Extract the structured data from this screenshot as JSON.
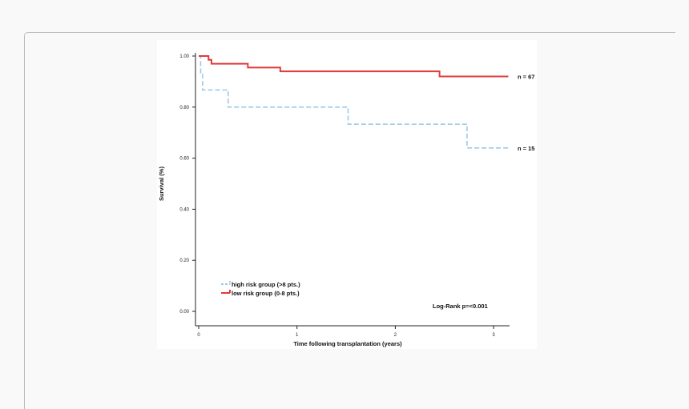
{
  "chart_data": {
    "type": "line",
    "title": "",
    "xlabel": "Time following transplantation (years)",
    "ylabel": "Survival (%)",
    "xlim": [
      0,
      3.15
    ],
    "ylim": [
      0,
      1.0
    ],
    "x_ticks": [
      "0",
      "1",
      "2",
      "3"
    ],
    "y_ticks": [
      "0.00",
      "0.20",
      "0.40",
      "0.60",
      "0.80",
      "1.00"
    ],
    "legend_position": "bottom-left",
    "annotation": "Log-Rank p=<0.001",
    "series": [
      {
        "name": "high risk group (>8 pts.)",
        "color": "#9ecae8",
        "style": "dashed",
        "end_label": "n = 15",
        "steps": [
          [
            0,
            1.0
          ],
          [
            0.02,
            0.933
          ],
          [
            0.04,
            0.867
          ],
          [
            0.3,
            0.8
          ],
          [
            1.52,
            0.733
          ],
          [
            2.73,
            0.64
          ],
          [
            3.15,
            0.64
          ]
        ]
      },
      {
        "name": "low risk group (0-8 pts.)",
        "color": "#e03c3c",
        "style": "solid",
        "end_label": "n = 67",
        "steps": [
          [
            0,
            1.0
          ],
          [
            0.1,
            0.985
          ],
          [
            0.13,
            0.97
          ],
          [
            0.5,
            0.955
          ],
          [
            0.83,
            0.94
          ],
          [
            2.45,
            0.92
          ],
          [
            3.15,
            0.92
          ]
        ]
      }
    ]
  }
}
